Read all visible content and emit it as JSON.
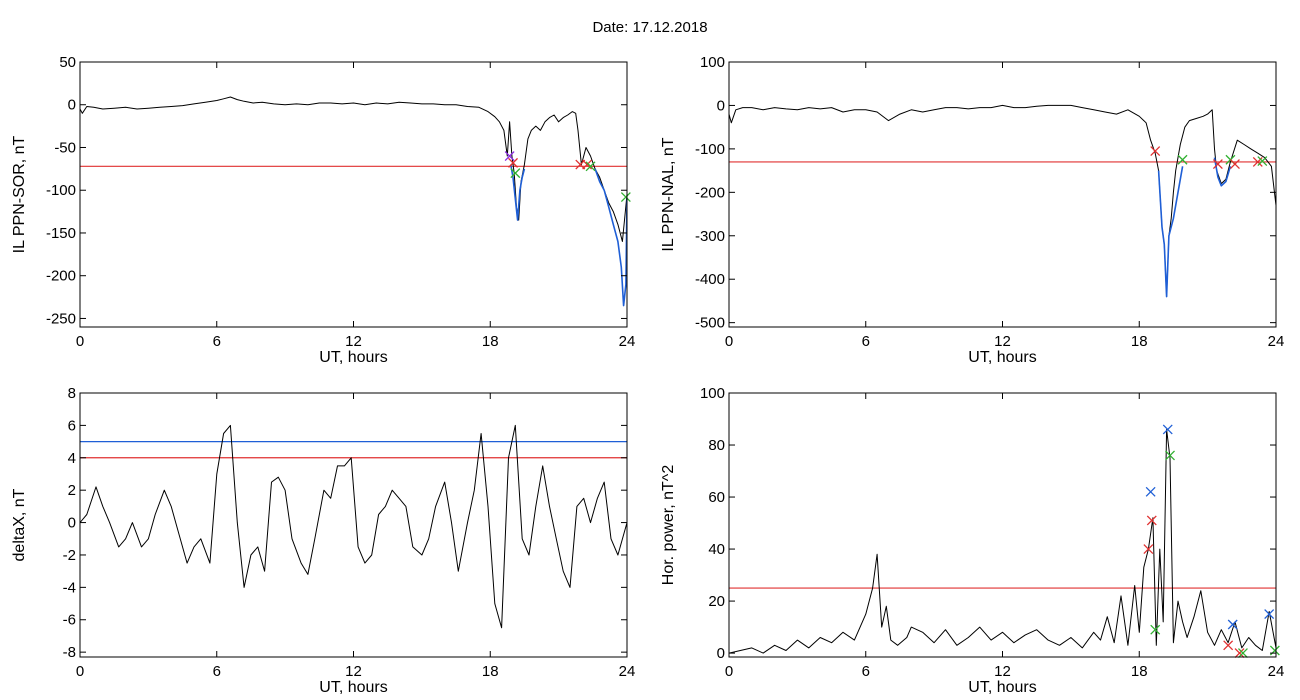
{
  "title": {
    "label": "Date:",
    "value": "17.12.2018"
  },
  "chart_data": [
    {
      "type": "line",
      "id": "sor",
      "xlabel": "UT, hours",
      "ylabel": "IL PPN-SOR, nT",
      "xlim": [
        0,
        24
      ],
      "ylim": [
        -260,
        50
      ],
      "xticks": [
        0,
        6,
        12,
        18,
        24
      ],
      "yticks": [
        50,
        0,
        -50,
        -100,
        -150,
        -200,
        -250
      ],
      "series": [
        {
          "color": "#000000",
          "x": [
            0,
            0.1,
            0.3,
            0.6,
            1.0,
            1.5,
            2.0,
            2.5,
            3.0,
            3.5,
            4.0,
            4.5,
            5.0,
            5.5,
            6.0,
            6.3,
            6.6,
            6.9,
            7.2,
            7.6,
            8.0,
            8.5,
            9.0,
            9.5,
            10.0,
            10.5,
            11.0,
            11.5,
            12.0,
            12.5,
            13.0,
            13.5,
            14.0,
            14.5,
            15.0,
            15.5,
            16.0,
            16.5,
            17.0,
            17.5,
            17.9,
            18.2,
            18.4,
            18.6,
            18.75,
            18.85,
            18.95,
            19.05,
            19.15,
            19.25,
            19.35,
            19.5,
            19.65,
            19.8,
            20.0,
            20.2,
            20.4,
            20.6,
            20.8,
            21.0,
            21.2,
            21.4,
            21.6,
            21.75,
            21.85,
            22.0,
            22.2,
            22.4,
            22.6,
            22.8,
            23.0,
            23.2,
            23.4,
            23.6,
            23.8,
            24.0
          ],
          "y": [
            -5,
            -10,
            -2,
            -3,
            -5,
            -4,
            -3,
            -5,
            -4,
            -3,
            -2,
            -1,
            1,
            3,
            5,
            7,
            9,
            6,
            4,
            2,
            3,
            1,
            0,
            1,
            0,
            2,
            2,
            1,
            2,
            0,
            2,
            1,
            3,
            2,
            1,
            1,
            0,
            0,
            -2,
            -3,
            -8,
            -14,
            -20,
            -30,
            -60,
            -20,
            -60,
            -80,
            -120,
            -135,
            -90,
            -70,
            -40,
            -30,
            -25,
            -30,
            -20,
            -15,
            -12,
            -20,
            -15,
            -12,
            -8,
            -10,
            -30,
            -70,
            -50,
            -60,
            -75,
            -85,
            -100,
            -115,
            -125,
            -140,
            -160,
            -105
          ]
        },
        {
          "color": "#1f5fd6",
          "x": [
            18.9,
            19.0,
            19.1,
            19.2,
            19.3,
            19.4,
            19.5
          ],
          "y": [
            -70,
            -85,
            -110,
            -135,
            -100,
            -85,
            -75
          ]
        },
        {
          "color": "#1f5fd6",
          "x": [
            22.6,
            22.8,
            23.0,
            23.2,
            23.4,
            23.6,
            23.75,
            23.85,
            23.95,
            24.0
          ],
          "y": [
            -75,
            -90,
            -100,
            -120,
            -140,
            -160,
            -190,
            -235,
            -210,
            -110
          ]
        }
      ],
      "hlines": [
        {
          "y": -72,
          "color": "#e03030"
        }
      ],
      "markers": [
        {
          "x": 18.85,
          "y": -60,
          "color": "#8a2be2"
        },
        {
          "x": 19.0,
          "y": -68,
          "color": "#e03030"
        },
        {
          "x": 19.1,
          "y": -80,
          "color": "#30b030"
        },
        {
          "x": 21.95,
          "y": -70,
          "color": "#e03030"
        },
        {
          "x": 22.25,
          "y": -70,
          "color": "#e03030"
        },
        {
          "x": 22.4,
          "y": -72,
          "color": "#30b030"
        },
        {
          "x": 23.95,
          "y": -108,
          "color": "#30b030"
        }
      ]
    },
    {
      "type": "line",
      "id": "nal",
      "xlabel": "UT, hours",
      "ylabel": "IL PPN-NAL, nT",
      "xlim": [
        0,
        24
      ],
      "ylim": [
        -510,
        100
      ],
      "xticks": [
        0,
        6,
        12,
        18,
        24
      ],
      "yticks": [
        100,
        0,
        -100,
        -200,
        -300,
        -400,
        -500
      ],
      "series": [
        {
          "color": "#000000",
          "x": [
            0,
            0.1,
            0.3,
            0.6,
            1.0,
            1.5,
            2.0,
            2.5,
            3.0,
            3.5,
            4.0,
            4.5,
            5.0,
            5.5,
            6.0,
            6.5,
            7.0,
            7.5,
            8.0,
            8.5,
            9.0,
            9.5,
            10.0,
            10.5,
            11.0,
            11.5,
            12.0,
            12.5,
            13.0,
            13.5,
            14.0,
            14.5,
            15.0,
            15.5,
            16.0,
            16.5,
            17.0,
            17.5,
            18.0,
            18.3,
            18.5,
            18.7,
            18.85,
            19.0,
            19.1,
            19.2,
            19.3,
            19.4,
            19.5,
            19.6,
            19.8,
            20.0,
            20.2,
            20.5,
            20.8,
            21.0,
            21.2,
            21.3,
            21.4,
            21.6,
            21.8,
            22.0,
            22.3,
            22.6,
            22.9,
            23.2,
            23.5,
            23.8,
            24.0
          ],
          "y": [
            -20,
            -40,
            -10,
            -5,
            -5,
            -10,
            -5,
            -8,
            -10,
            -5,
            -8,
            -5,
            -15,
            -10,
            -10,
            -15,
            -35,
            -20,
            -10,
            -15,
            -10,
            -5,
            -5,
            -8,
            -5,
            -5,
            0,
            -5,
            -5,
            -2,
            0,
            0,
            0,
            -5,
            -10,
            -15,
            -20,
            -10,
            -25,
            -40,
            -80,
            -110,
            -150,
            -280,
            -320,
            -440,
            -300,
            -260,
            -200,
            -150,
            -90,
            -50,
            -35,
            -30,
            -25,
            -20,
            -10,
            -100,
            -150,
            -180,
            -170,
            -130,
            -80,
            -90,
            -100,
            -110,
            -120,
            -140,
            -230
          ]
        },
        {
          "color": "#1f5fd6",
          "x": [
            18.85,
            19.0,
            19.1,
            19.2,
            19.3,
            19.5,
            19.7,
            19.9
          ],
          "y": [
            -150,
            -280,
            -320,
            -440,
            -300,
            -260,
            -200,
            -140
          ]
        },
        {
          "color": "#1f5fd6",
          "x": [
            21.3,
            21.45,
            21.6,
            21.8,
            22.0
          ],
          "y": [
            -120,
            -165,
            -185,
            -175,
            -140
          ]
        }
      ],
      "hlines": [
        {
          "y": -130,
          "color": "#e03030"
        }
      ],
      "markers": [
        {
          "x": 18.7,
          "y": -105,
          "color": "#e03030"
        },
        {
          "x": 19.9,
          "y": -125,
          "color": "#30b030"
        },
        {
          "x": 21.45,
          "y": -135,
          "color": "#e03030"
        },
        {
          "x": 22.0,
          "y": -125,
          "color": "#30b030"
        },
        {
          "x": 22.2,
          "y": -135,
          "color": "#e03030"
        },
        {
          "x": 23.2,
          "y": -130,
          "color": "#e03030"
        },
        {
          "x": 23.4,
          "y": -128,
          "color": "#30b030"
        }
      ]
    },
    {
      "type": "line",
      "id": "deltax",
      "xlabel": "UT, hours",
      "ylabel": "deltaX, nT",
      "xlim": [
        0,
        24
      ],
      "ylim": [
        -8.3,
        8
      ],
      "xticks": [
        0,
        6,
        12,
        18,
        24
      ],
      "yticks": [
        8,
        6,
        4,
        2,
        0,
        -2,
        -4,
        -6,
        -8
      ],
      "series": [
        {
          "color": "#000000",
          "x": [
            0,
            0.3,
            0.7,
            1.0,
            1.3,
            1.7,
            2.0,
            2.3,
            2.7,
            3.0,
            3.3,
            3.7,
            4.0,
            4.3,
            4.7,
            5.0,
            5.3,
            5.7,
            6.0,
            6.3,
            6.6,
            6.9,
            7.2,
            7.5,
            7.8,
            8.1,
            8.4,
            8.7,
            9.0,
            9.3,
            9.7,
            10.0,
            10.3,
            10.7,
            11.0,
            11.3,
            11.6,
            11.9,
            12.2,
            12.5,
            12.8,
            13.1,
            13.4,
            13.7,
            14.0,
            14.3,
            14.6,
            15.0,
            15.3,
            15.6,
            16.0,
            16.3,
            16.6,
            17.0,
            17.3,
            17.6,
            17.9,
            18.2,
            18.5,
            18.8,
            19.1,
            19.4,
            19.7,
            20.0,
            20.3,
            20.6,
            20.9,
            21.2,
            21.5,
            21.8,
            22.1,
            22.4,
            22.7,
            23.0,
            23.3,
            23.6,
            24.0
          ],
          "y": [
            0,
            0.5,
            2.2,
            1.0,
            0,
            -1.5,
            -1.0,
            0,
            -1.5,
            -1.0,
            0.5,
            2.0,
            1.0,
            -0.5,
            -2.5,
            -1.5,
            -1.0,
            -2.5,
            3.0,
            5.5,
            6.0,
            0,
            -4.0,
            -2.0,
            -1.5,
            -3.0,
            2.5,
            2.8,
            2.0,
            -1.0,
            -2.5,
            -3.2,
            -1.0,
            2.0,
            1.5,
            3.5,
            3.5,
            4.0,
            -1.5,
            -2.5,
            -2.0,
            0.5,
            1.0,
            2.0,
            1.5,
            1.0,
            -1.5,
            -2.0,
            -1.0,
            1.0,
            2.5,
            0,
            -3.0,
            0,
            2.0,
            5.5,
            1.0,
            -5.0,
            -6.5,
            4.0,
            6.0,
            -1.0,
            -2.0,
            1.0,
            3.5,
            1.0,
            -1.0,
            -3.0,
            -4.0,
            1.0,
            1.5,
            0,
            1.5,
            2.5,
            -1.0,
            -2.0,
            0
          ]
        }
      ],
      "hlines": [
        {
          "y": 5,
          "color": "#1f5fd6"
        },
        {
          "y": 4,
          "color": "#e03030"
        }
      ],
      "markers": []
    },
    {
      "type": "line",
      "id": "hor",
      "xlabel": "UT, hours",
      "ylabel": "Hor. power, nT^2",
      "xlim": [
        0,
        24
      ],
      "ylim": [
        -1.5,
        100
      ],
      "xticks": [
        0,
        6,
        12,
        18,
        24
      ],
      "yticks": [
        100,
        80,
        60,
        40,
        20,
        0
      ],
      "series": [
        {
          "color": "#000000",
          "x": [
            0,
            0.5,
            1.0,
            1.5,
            2.0,
            2.5,
            3.0,
            3.5,
            4.0,
            4.5,
            5.0,
            5.5,
            6.0,
            6.3,
            6.5,
            6.7,
            6.9,
            7.1,
            7.4,
            7.8,
            8.0,
            8.5,
            9.0,
            9.5,
            10.0,
            10.5,
            11.0,
            11.5,
            12.0,
            12.5,
            13.0,
            13.5,
            14.0,
            14.5,
            15.0,
            15.5,
            16.0,
            16.3,
            16.6,
            16.9,
            17.2,
            17.5,
            17.8,
            18.0,
            18.2,
            18.4,
            18.6,
            18.75,
            18.9,
            19.05,
            19.2,
            19.35,
            19.5,
            19.7,
            19.9,
            20.1,
            20.4,
            20.7,
            21.0,
            21.3,
            21.6,
            21.9,
            22.2,
            22.5,
            22.8,
            23.1,
            23.4,
            23.7,
            24.0
          ],
          "y": [
            0,
            1,
            2,
            0,
            3,
            1,
            5,
            2,
            6,
            4,
            8,
            5,
            15,
            25,
            38,
            10,
            18,
            5,
            3,
            6,
            10,
            8,
            4,
            9,
            3,
            6,
            10,
            5,
            8,
            4,
            7,
            9,
            5,
            3,
            6,
            2,
            8,
            5,
            14,
            4,
            22,
            3,
            26,
            8,
            33,
            40,
            52,
            3,
            40,
            12,
            86,
            75,
            4,
            20,
            12,
            6,
            14,
            24,
            8,
            3,
            9,
            4,
            12,
            2,
            6,
            3,
            1,
            16,
            2
          ]
        }
      ],
      "hlines": [
        {
          "y": 25,
          "color": "#e03030"
        }
      ],
      "markers": [
        {
          "x": 18.4,
          "y": 40,
          "color": "#e03030"
        },
        {
          "x": 18.55,
          "y": 51,
          "color": "#e03030"
        },
        {
          "x": 18.5,
          "y": 62,
          "color": "#1f5fd6"
        },
        {
          "x": 18.7,
          "y": 9,
          "color": "#30b030"
        },
        {
          "x": 19.25,
          "y": 86,
          "color": "#1f5fd6"
        },
        {
          "x": 19.35,
          "y": 76,
          "color": "#30b030"
        },
        {
          "x": 22.1,
          "y": 11,
          "color": "#1f5fd6"
        },
        {
          "x": 21.9,
          "y": 3,
          "color": "#e03030"
        },
        {
          "x": 22.4,
          "y": 0,
          "color": "#e03030"
        },
        {
          "x": 22.55,
          "y": 0,
          "color": "#30b030"
        },
        {
          "x": 23.7,
          "y": 15,
          "color": "#1f5fd6"
        },
        {
          "x": 23.95,
          "y": 1,
          "color": "#30b030"
        }
      ]
    }
  ]
}
